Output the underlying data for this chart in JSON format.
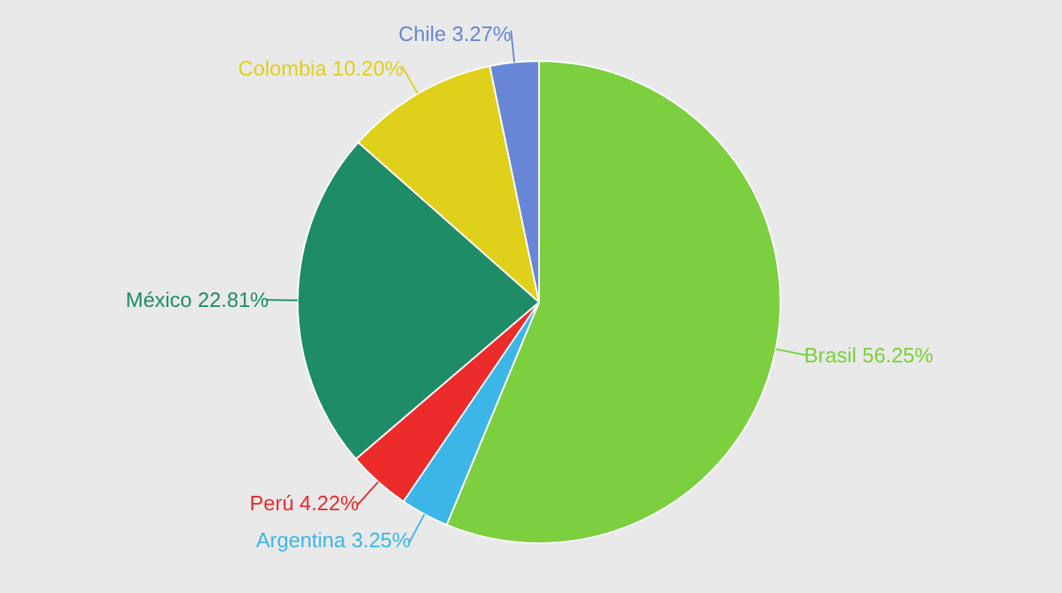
{
  "chart_data": {
    "type": "pie",
    "categories": [
      "Brasil",
      "Argentina",
      "Perú",
      "México",
      "Colombia",
      "Chile"
    ],
    "values": [
      56.25,
      3.25,
      4.22,
      22.81,
      10.2,
      3.27
    ],
    "value_labels": [
      "56.25%",
      "3.25%",
      "4.22%",
      "22.81%",
      "10.20%",
      "3.27%"
    ],
    "colors": [
      "#7ccf3e",
      "#3cb6e6",
      "#ec2b2b",
      "#1f8c68",
      "#dfd01b",
      "#6787d6"
    ],
    "legend": false
  }
}
